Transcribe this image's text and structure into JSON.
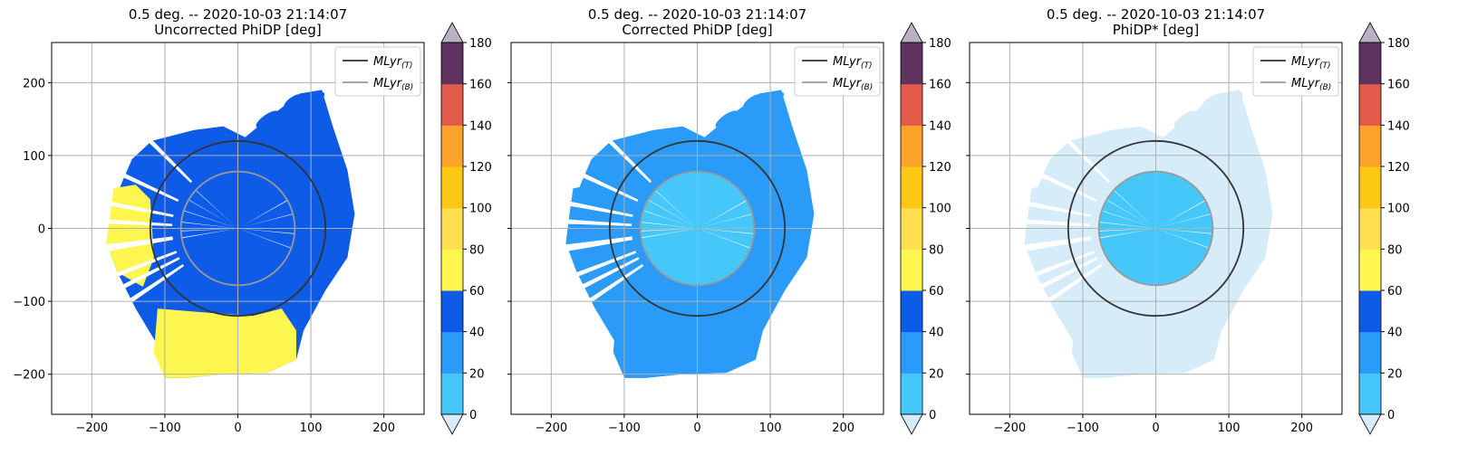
{
  "chart_data": [
    {
      "type": "heatmap",
      "title_line1": "0.5 deg. -- 2020-10-03 21:14:07",
      "title_line2": "Uncorrected PhiDP [deg]",
      "xlim": [
        -255,
        255
      ],
      "ylim": [
        -255,
        255
      ],
      "xticks": [
        -200,
        -100,
        0,
        100,
        200
      ],
      "xtick_labels": [
        "−200",
        "−100",
        "0",
        "100",
        "200"
      ],
      "yticks": [
        200,
        100,
        0,
        -100,
        -200
      ],
      "ytick_labels": [
        "200",
        "100",
        "0",
        "−100",
        "−200"
      ],
      "show_y_ticklabels": true,
      "grid": true,
      "legend_position": "top-right",
      "legend": [
        {
          "label_main": "MLyr",
          "label_sub": "(T)",
          "color": "#333333"
        },
        {
          "label_main": "MLyr",
          "label_sub": "(B)",
          "color": "#999999"
        }
      ],
      "melting_layer_radii_km": {
        "top": 120,
        "bottom": 78
      },
      "field_levels": {
        "inner": 50,
        "outer": 50,
        "south_sector": 70,
        "west_fringe": 70
      },
      "colorbar": {
        "ticks": [
          0,
          20,
          40,
          60,
          80,
          100,
          120,
          140,
          160,
          180
        ],
        "tick_labels": [
          "0",
          "20",
          "40",
          "60",
          "80",
          "100",
          "120",
          "140",
          "160",
          "180"
        ],
        "extend": "both"
      }
    },
    {
      "type": "heatmap",
      "title_line1": "0.5 deg. -- 2020-10-03 21:14:07",
      "title_line2": "Corrected PhiDP [deg]",
      "xlim": [
        -255,
        255
      ],
      "ylim": [
        -255,
        255
      ],
      "xticks": [
        -200,
        -100,
        0,
        100,
        200
      ],
      "xtick_labels": [
        "−200",
        "−100",
        "0",
        "100",
        "200"
      ],
      "yticks": [
        200,
        100,
        0,
        -100,
        -200
      ],
      "ytick_labels": [
        "200",
        "100",
        "0",
        "−100",
        "−200"
      ],
      "show_y_ticklabels": false,
      "grid": true,
      "legend_position": "top-right",
      "legend": [
        {
          "label_main": "MLyr",
          "label_sub": "(T)",
          "color": "#333333"
        },
        {
          "label_main": "MLyr",
          "label_sub": "(B)",
          "color": "#999999"
        }
      ],
      "melting_layer_radii_km": {
        "top": 120,
        "bottom": 78
      },
      "field_levels": {
        "inner": 10,
        "outer": 20,
        "south_sector": 30,
        "west_fringe": 20
      },
      "colorbar": {
        "ticks": [
          0,
          20,
          40,
          60,
          80,
          100,
          120,
          140,
          160,
          180
        ],
        "tick_labels": [
          "0",
          "20",
          "40",
          "60",
          "80",
          "100",
          "120",
          "140",
          "160",
          "180"
        ],
        "extend": "both"
      }
    },
    {
      "type": "heatmap",
      "title_line1": "0.5 deg. -- 2020-10-03 21:14:07",
      "title_line2": "PhiDP* [deg]",
      "xlim": [
        -255,
        255
      ],
      "ylim": [
        -255,
        255
      ],
      "xticks": [
        -200,
        -100,
        0,
        100,
        200
      ],
      "xtick_labels": [
        "−200",
        "−100",
        "0",
        "100",
        "200"
      ],
      "yticks": [
        200,
        100,
        0,
        -100,
        -200
      ],
      "ytick_labels": [
        "200",
        "100",
        "0",
        "−100",
        "−200"
      ],
      "show_y_ticklabels": false,
      "grid": true,
      "legend_position": "top-right",
      "legend": [
        {
          "label_main": "MLyr",
          "label_sub": "(T)",
          "color": "#333333"
        },
        {
          "label_main": "MLyr",
          "label_sub": "(B)",
          "color": "#999999"
        }
      ],
      "melting_layer_radii_km": {
        "top": 120,
        "bottom": 78
      },
      "field_levels": {
        "inner": 10,
        "outer": -5,
        "south_sector": -5,
        "west_fringe": -5
      },
      "colorbar": {
        "ticks": [
          0,
          20,
          40,
          60,
          80,
          100,
          120,
          140,
          160,
          180
        ],
        "tick_labels": [
          "0",
          "20",
          "40",
          "60",
          "80",
          "100",
          "120",
          "140",
          "160",
          "180"
        ],
        "extend": "both"
      }
    }
  ],
  "colormap": {
    "under": "#d6ecf8",
    "bands": [
      "#45c8f9",
      "#2a9bf8",
      "#0d5be6",
      "#fdf64f",
      "#fddf50",
      "#fdc813",
      "#fba32a",
      "#e35b4b",
      "#5e3360"
    ],
    "over": "#bbb1c6"
  },
  "styling": {
    "ml_top_color": "#333333",
    "ml_bottom_color": "#999999",
    "grid_color": "#b0b0b0"
  }
}
